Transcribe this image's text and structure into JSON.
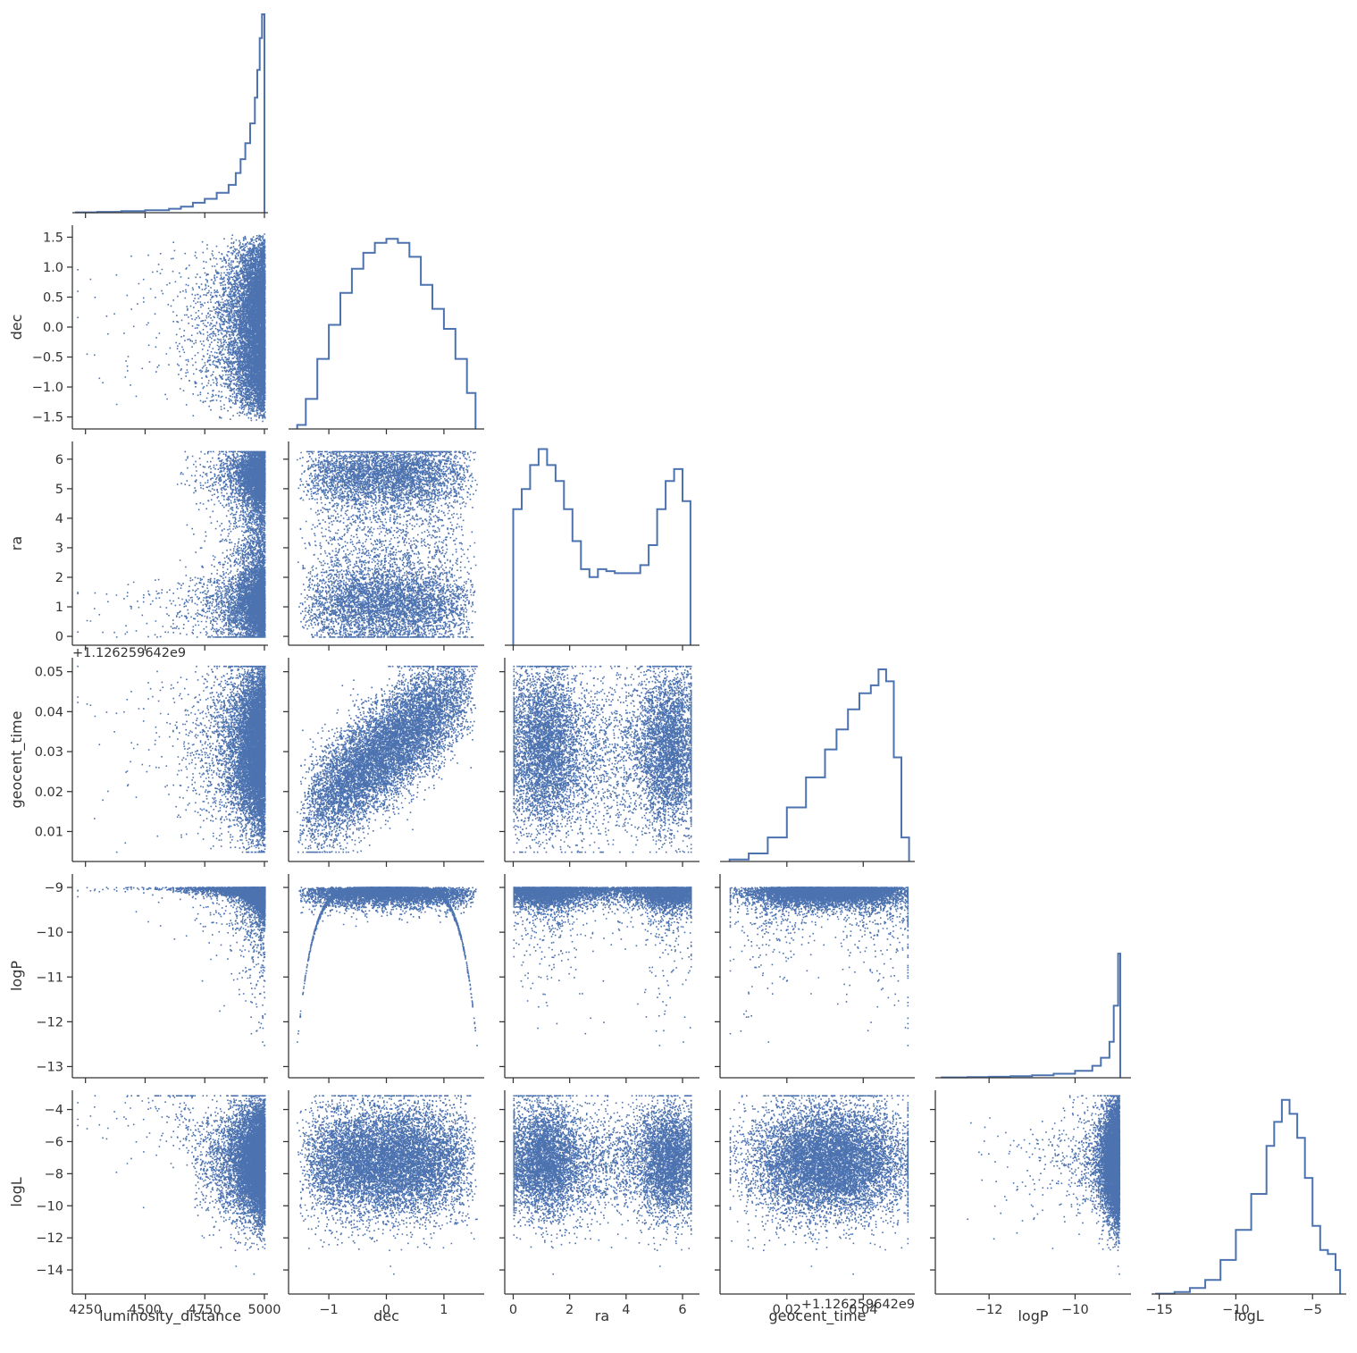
{
  "chart_data": {
    "type": "corner",
    "color": "#4c72b0",
    "parameters": [
      "luminosity_distance",
      "dec",
      "ra",
      "geocent_time",
      "logP",
      "logL"
    ],
    "axes": {
      "luminosity_distance": {
        "label": "luminosity_distance",
        "range": [
          4195,
          5015
        ],
        "ticks": [
          4250,
          4500,
          4750,
          5000
        ],
        "tick_labels": [
          "4250",
          "4500",
          "4750",
          "5000"
        ],
        "offset_text": ""
      },
      "dec": {
        "label": "dec",
        "range": [
          -1.7,
          1.7
        ],
        "ticks": [
          -1.5,
          -1.0,
          -0.5,
          0.0,
          0.5,
          1.0,
          1.5
        ],
        "tick_labels": [
          "−1.5",
          "−1.0",
          "−0.5",
          "0.0",
          "0.5",
          "1.0",
          "1.5"
        ],
        "x_ticks": [
          -1,
          0,
          1
        ],
        "x_tick_labels": [
          "−1",
          "0",
          "1"
        ],
        "offset_text": ""
      },
      "ra": {
        "label": "ra",
        "range": [
          -0.3,
          6.6
        ],
        "ticks": [
          0,
          1,
          2,
          3,
          4,
          5,
          6
        ],
        "tick_labels": [
          "0",
          "1",
          "2",
          "3",
          "4",
          "5",
          "6"
        ],
        "x_ticks": [
          0,
          2,
          4,
          6
        ],
        "x_tick_labels": [
          "0",
          "2",
          "4",
          "6"
        ],
        "offset_text": ""
      },
      "geocent_time": {
        "label": "geocent_time",
        "range": [
          0.0025,
          0.0535
        ],
        "ticks": [
          0.01,
          0.02,
          0.03,
          0.04,
          0.05
        ],
        "tick_labels": [
          "0.01",
          "0.02",
          "0.03",
          "0.04",
          "0.05"
        ],
        "x_ticks": [
          0.02,
          0.04
        ],
        "x_tick_labels": [
          "0.02",
          "0.04"
        ],
        "offset_text": "+1.126259642e9"
      },
      "logP": {
        "label": "logP",
        "range": [
          -13.25,
          -8.7
        ],
        "ticks": [
          -13,
          -12,
          -11,
          -10,
          -9
        ],
        "tick_labels": [
          "−13",
          "−12",
          "−11",
          "−10",
          "−9"
        ],
        "x_ticks": [
          -12,
          -10
        ],
        "x_tick_labels": [
          "−12",
          "−10"
        ],
        "offset_text": ""
      },
      "logL": {
        "label": "logL",
        "range": [
          -15.5,
          -2.8
        ],
        "ticks": [
          -14,
          -12,
          -10,
          -8,
          -6,
          -4
        ],
        "tick_labels": [
          "−14",
          "−12",
          "−10",
          "−8",
          "−6",
          "−4"
        ],
        "x_ticks": [
          -15,
          -10,
          -5
        ],
        "x_tick_labels": [
          "−15",
          "−10",
          "−5"
        ],
        "offset_text": ""
      }
    },
    "histograms": {
      "luminosity_distance": {
        "x": [
          4210,
          4300,
          4400,
          4500,
          4600,
          4650,
          4700,
          4750,
          4800,
          4850,
          4880,
          4900,
          4920,
          4940,
          4960,
          4970,
          4980,
          4990,
          5000
        ],
        "density": [
          0.002,
          0.004,
          0.008,
          0.012,
          0.02,
          0.03,
          0.05,
          0.07,
          0.1,
          0.14,
          0.2,
          0.27,
          0.35,
          0.45,
          0.58,
          0.72,
          0.88,
          1.0,
          0.94
        ]
      },
      "dec": {
        "x": [
          -1.55,
          -1.4,
          -1.2,
          -1.0,
          -0.8,
          -0.6,
          -0.4,
          -0.2,
          0.0,
          0.2,
          0.4,
          0.6,
          0.8,
          1.0,
          1.2,
          1.4,
          1.55
        ],
        "density": [
          0.02,
          0.15,
          0.35,
          0.52,
          0.68,
          0.8,
          0.88,
          0.93,
          0.95,
          0.93,
          0.86,
          0.72,
          0.6,
          0.5,
          0.35,
          0.18,
          0.03
        ]
      },
      "ra": {
        "x": [
          0.0,
          0.3,
          0.6,
          0.9,
          1.2,
          1.5,
          1.8,
          2.1,
          2.4,
          2.7,
          3.0,
          3.3,
          3.6,
          3.9,
          4.2,
          4.5,
          4.8,
          5.1,
          5.4,
          5.7,
          6.0,
          6.28
        ],
        "density": [
          0.68,
          0.78,
          0.9,
          0.98,
          0.9,
          0.82,
          0.68,
          0.52,
          0.38,
          0.34,
          0.38,
          0.37,
          0.36,
          0.36,
          0.36,
          0.4,
          0.5,
          0.68,
          0.82,
          0.88,
          0.72,
          0.68
        ]
      },
      "geocent_time": {
        "x": [
          0.005,
          0.01,
          0.015,
          0.02,
          0.025,
          0.03,
          0.033,
          0.036,
          0.039,
          0.042,
          0.044,
          0.046,
          0.048,
          0.05,
          0.052
        ],
        "density": [
          0.01,
          0.04,
          0.12,
          0.27,
          0.42,
          0.56,
          0.66,
          0.76,
          0.84,
          0.88,
          0.96,
          0.9,
          0.52,
          0.12,
          0.02
        ]
      },
      "logP": {
        "x": [
          -13.1,
          -12.5,
          -12.0,
          -11.5,
          -11.0,
          -10.5,
          -10.0,
          -9.6,
          -9.4,
          -9.2,
          -9.1,
          -9.0,
          -8.95
        ],
        "density": [
          0.002,
          0.003,
          0.005,
          0.008,
          0.012,
          0.02,
          0.035,
          0.06,
          0.1,
          0.18,
          0.36,
          0.62,
          1.0
        ]
      },
      "logL": {
        "x": [
          -15.2,
          -14.0,
          -13.0,
          -12.0,
          -11.0,
          -10.0,
          -9.0,
          -8.0,
          -7.5,
          -7.0,
          -6.5,
          -6.0,
          -5.5,
          -5.0,
          -4.5,
          -4.0,
          -3.5,
          -3.2
        ],
        "density": [
          0.002,
          0.01,
          0.03,
          0.07,
          0.17,
          0.32,
          0.5,
          0.74,
          0.86,
          0.97,
          0.9,
          0.78,
          0.58,
          0.34,
          0.22,
          0.2,
          0.12,
          0.02
        ]
      }
    },
    "samples": 30000
  }
}
